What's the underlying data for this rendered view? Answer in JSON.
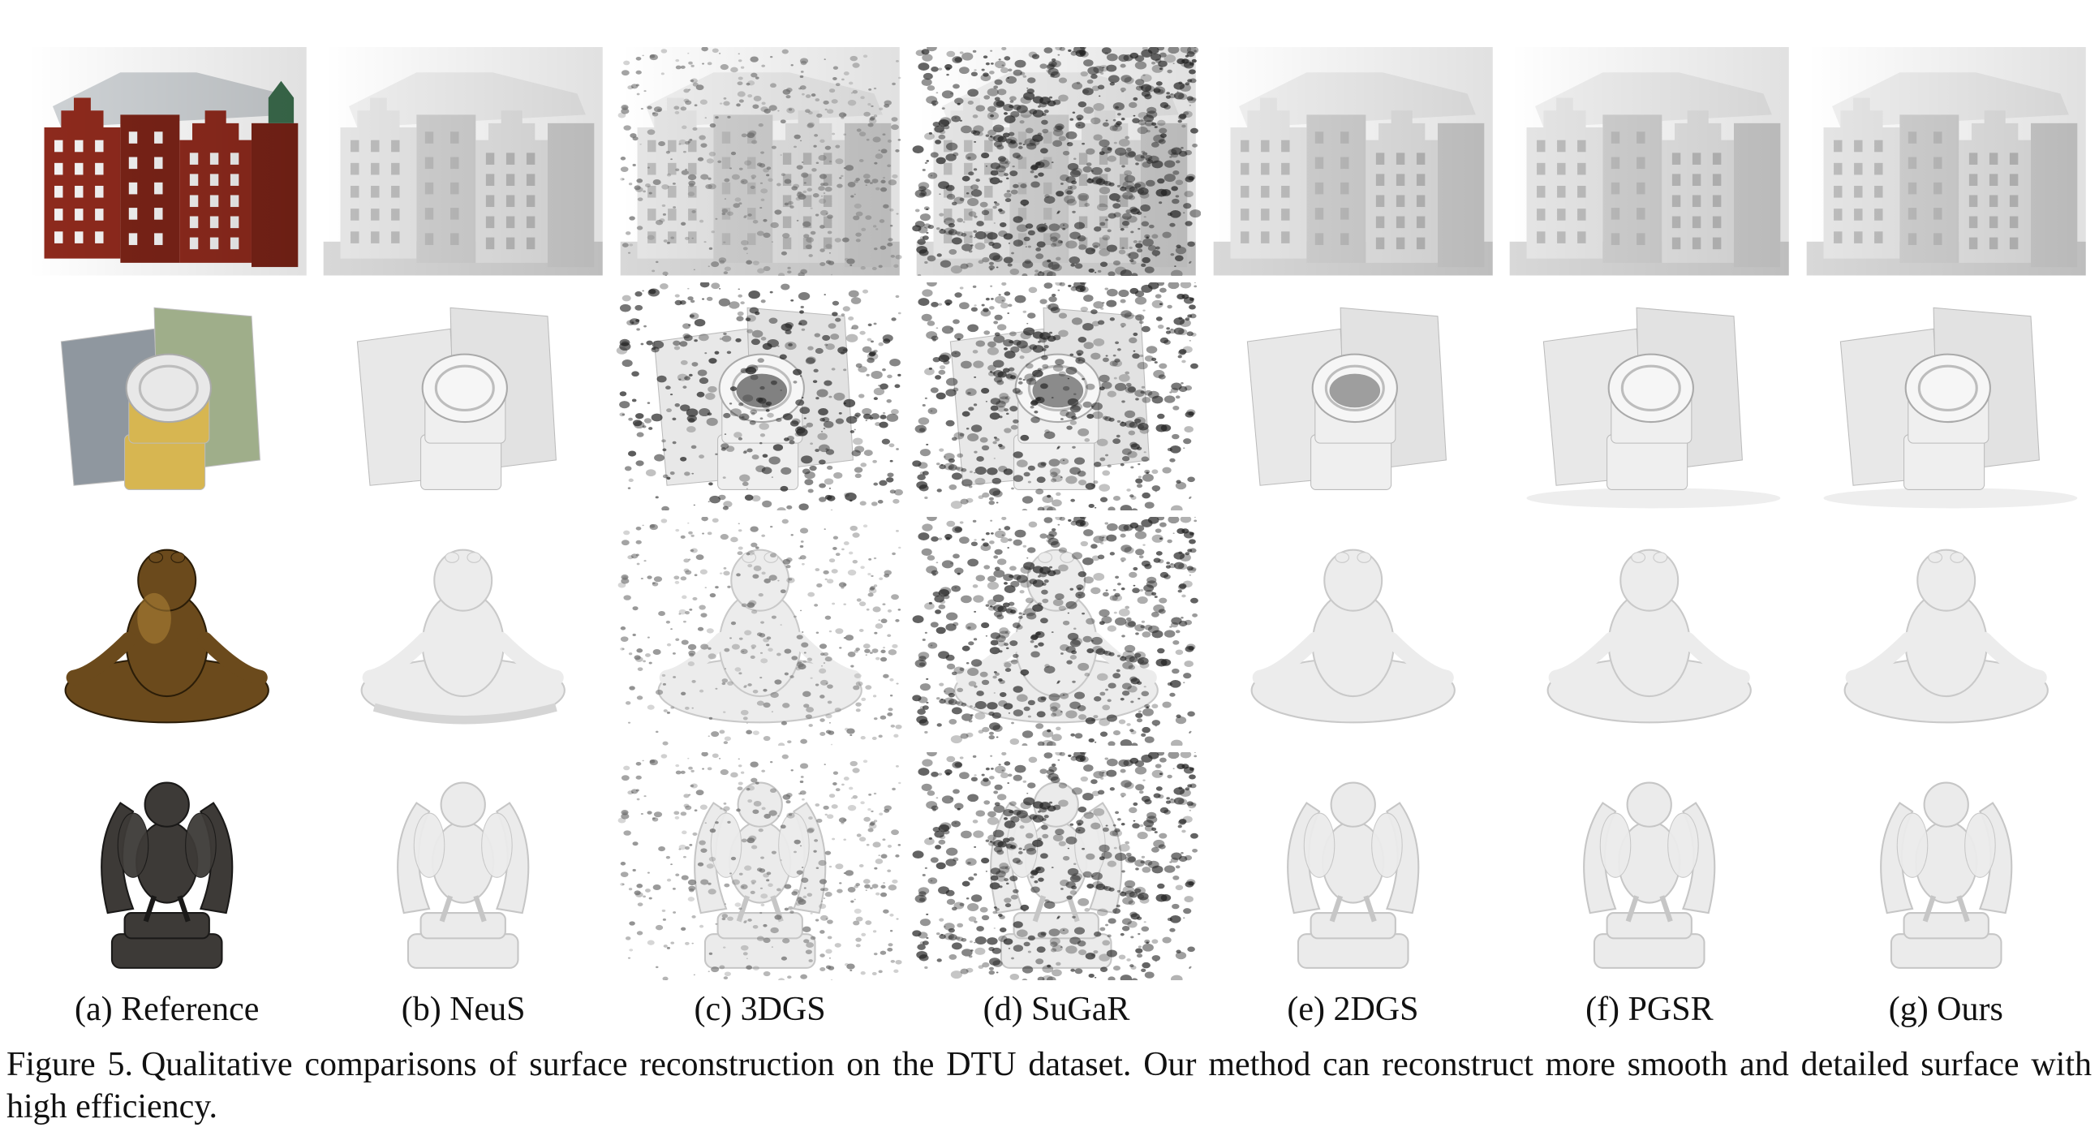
{
  "figure": {
    "methods": [
      {
        "key": "reference",
        "label": "(a) Reference"
      },
      {
        "key": "neus",
        "label": "(b) NeuS"
      },
      {
        "key": "3dgs",
        "label": "(c) 3DGS"
      },
      {
        "key": "sugar",
        "label": "(d) SuGaR"
      },
      {
        "key": "2dgs",
        "label": "(e) 2DGS"
      },
      {
        "key": "pgsr",
        "label": "(f) PGSR"
      },
      {
        "key": "ours",
        "label": "(g) Ours"
      }
    ],
    "scenes": [
      "building",
      "packages-and-cans",
      "buddha-frog",
      "angel-in-hands"
    ],
    "caption_number": "Figure 5.",
    "caption_text": "Qualitative comparisons of surface reconstruction on the DTU dataset. Our method can reconstruct more smooth and detailed surface with high efficiency."
  },
  "colors": {
    "brick": "#8e2a1d",
    "roof": "#cfd3d6",
    "tin": "#c8c8c8",
    "bronze": "#6b4a1c",
    "dark_stone": "#3d3a37",
    "mesh": "#e4e4e4"
  }
}
